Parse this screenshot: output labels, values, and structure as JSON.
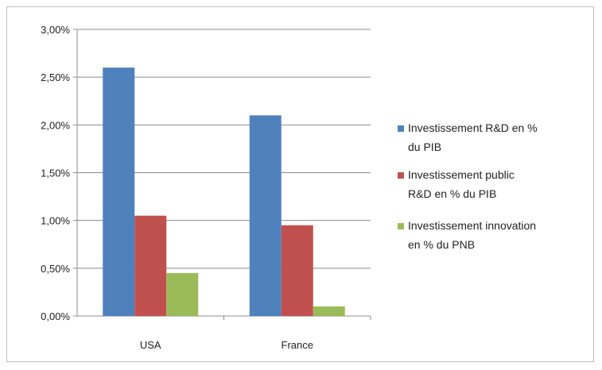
{
  "chart_data": {
    "type": "bar",
    "categories": [
      "USA",
      "France"
    ],
    "series": [
      {
        "name": "Investissement R&D en % du PIB",
        "values": [
          2.6,
          2.1
        ],
        "color": "#4f81bd"
      },
      {
        "name": "Investissement public R&D en % du PIB",
        "values": [
          1.05,
          0.95
        ],
        "color": "#c0504d"
      },
      {
        "name": "Investissement innovation en % du PNB",
        "values": [
          0.45,
          0.1
        ],
        "color": "#9bbb59"
      }
    ],
    "ylim": [
      0,
      3
    ],
    "yticks": [
      0,
      0.5,
      1,
      1.5,
      2,
      2.5,
      3
    ],
    "ytick_labels": [
      "0,00%",
      "0,50%",
      "1,00%",
      "1,50%",
      "2,00%",
      "2,50%",
      "3,00%"
    ],
    "legend_position": "right",
    "legend_lines": [
      [
        "Investissement R&D en %",
        "du PIB"
      ],
      [
        "Investissement public",
        "R&D en % du PIB"
      ],
      [
        "Investissement innovation",
        "en % du PNB"
      ]
    ],
    "grid": true,
    "title": "",
    "xlabel": "",
    "ylabel": ""
  }
}
